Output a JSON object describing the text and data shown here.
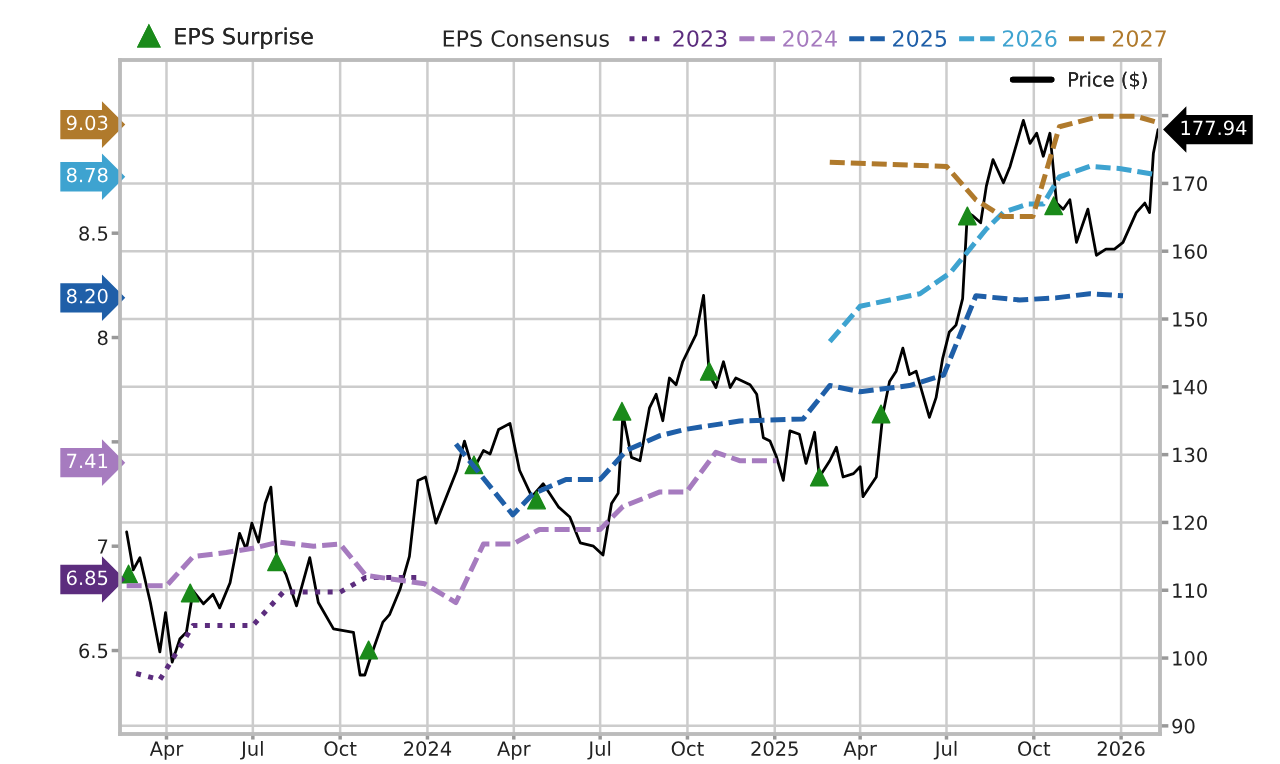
{
  "chart_data": {
    "type": "line",
    "legend_title": "EPS Consensus",
    "xlim": [
      "2023-02-11",
      "2026-02-11"
    ],
    "xticks": [
      {
        "value": "2023-04-01",
        "label": "Apr"
      },
      {
        "value": "2023-07-01",
        "label": "Jul"
      },
      {
        "value": "2023-10-01",
        "label": "Oct"
      },
      {
        "value": "2024-01-01",
        "label": "2024"
      },
      {
        "value": "2024-04-01",
        "label": "Apr"
      },
      {
        "value": "2024-07-01",
        "label": "Jul"
      },
      {
        "value": "2024-10-01",
        "label": "Oct"
      },
      {
        "value": "2025-01-01",
        "label": "2025"
      },
      {
        "value": "2025-04-01",
        "label": "Apr"
      },
      {
        "value": "2025-07-01",
        "label": "Jul"
      },
      {
        "value": "2025-10-01",
        "label": "Oct"
      },
      {
        "value": "2026-01-01",
        "label": "2026"
      }
    ],
    "ylim": [
      6.1,
      9.33
    ],
    "yticks": [
      6.5,
      6.85,
      7,
      7.41,
      {
        "value": 7.5,
        "label": null
      },
      8,
      {
        "value": 8.2,
        "label": "8.20"
      },
      8.5,
      8.78,
      9.03
    ],
    "y2lim": [
      88.8,
      188.2
    ],
    "y2ticks": [
      90,
      100,
      110,
      120,
      130,
      140,
      150,
      160,
      170,
      {
        "value": 180,
        "label": null
      }
    ],
    "grid": true,
    "legend": "top",
    "series": [
      {
        "name": "EPS Surprise",
        "type": "scatter",
        "axis": "y2",
        "color": "#1a8a1a",
        "marker": "triangle",
        "x": [
          "2023-02-20",
          "2023-04-26",
          "2023-07-26",
          "2023-10-31",
          "2024-02-19",
          "2024-04-25",
          "2024-07-24",
          "2024-10-24",
          "2025-02-17",
          "2025-04-23",
          "2025-07-23",
          "2025-10-22"
        ],
        "values": [
          112.4,
          109.6,
          114.2,
          101.2,
          128.5,
          123.3,
          136.4,
          142.3,
          126.7,
          136.0,
          165.2,
          166.7
        ]
      },
      {
        "name": "2023",
        "color": "#5c2d7e",
        "line_style": "dotted",
        "x": [
          "2023-02-28",
          "2023-03-25",
          "2023-04-29",
          "2023-07-01",
          "2023-08-02",
          "2023-10-01",
          "2023-10-28",
          "2023-12-28"
        ],
        "values": [
          6.39,
          6.36,
          6.62,
          6.62,
          6.78,
          6.78,
          6.85,
          6.85
        ]
      },
      {
        "name": "2024",
        "color": "#a67bbf",
        "line_style": "dashed",
        "x": [
          "2023-02-18",
          "2023-04-01",
          "2023-04-29",
          "2023-06-03",
          "2023-07-01",
          "2023-07-29",
          "2023-09-03",
          "2023-10-01",
          "2023-10-28",
          "2023-12-29",
          "2024-01-31",
          "2024-02-29",
          "2024-03-31",
          "2024-04-28",
          "2024-07-01",
          "2024-07-25",
          "2024-09-02",
          "2024-09-30",
          "2024-10-31",
          "2024-11-25",
          "2025-01-03"
        ],
        "values": [
          6.81,
          6.81,
          6.95,
          6.97,
          6.99,
          7.02,
          7.0,
          7.01,
          6.86,
          6.82,
          6.73,
          7.01,
          7.01,
          7.08,
          7.08,
          7.19,
          7.26,
          7.26,
          7.45,
          7.41,
          7.41
        ]
      },
      {
        "name": "2025",
        "color": "#1f5fa8",
        "line_style": "dashed",
        "x": [
          "2024-01-31",
          "2024-03-31",
          "2024-04-21",
          "2024-05-26",
          "2024-07-01",
          "2024-07-29",
          "2024-09-02",
          "2024-09-29",
          "2024-11-25",
          "2025-01-31",
          "2025-02-28",
          "2025-04-01",
          "2025-05-23",
          "2025-06-28",
          "2025-08-01",
          "2025-09-16",
          "2025-10-24",
          "2025-11-29",
          "2026-01-03"
        ],
        "values": [
          7.49,
          7.15,
          7.25,
          7.32,
          7.32,
          7.46,
          7.53,
          7.56,
          7.6,
          7.61,
          7.77,
          7.74,
          7.77,
          7.82,
          8.2,
          8.18,
          8.19,
          8.21,
          8.2
        ]
      },
      {
        "name": "2026",
        "color": "#3ea3d0",
        "line_style": "dashed",
        "x": [
          "2025-02-28",
          "2025-04-01",
          "2025-06-03",
          "2025-07-05",
          "2025-08-12",
          "2025-08-30",
          "2025-09-25",
          "2025-10-11",
          "2025-10-28",
          "2025-11-29",
          "2025-12-30",
          "2026-02-07"
        ],
        "values": [
          7.98,
          8.15,
          8.21,
          8.31,
          8.52,
          8.6,
          8.64,
          8.64,
          8.77,
          8.82,
          8.81,
          8.78
        ]
      },
      {
        "name": "2027",
        "color": "#b07a2c",
        "line_style": "dashed",
        "x": [
          "2025-02-28",
          "2025-07-01",
          "2025-08-01",
          "2025-08-29",
          "2025-09-30",
          "2025-10-28",
          "2025-12-09",
          "2026-01-17",
          "2026-02-09"
        ],
        "values": [
          8.84,
          8.82,
          8.66,
          8.58,
          8.58,
          9.01,
          9.06,
          9.06,
          9.03
        ]
      },
      {
        "name": "Price ($)",
        "axis": "y2",
        "color": "#000000",
        "line_style": "solid",
        "x": [
          "2023-02-18",
          "2023-02-25",
          "2023-03-04",
          "2023-03-15",
          "2023-03-25",
          "2023-03-31",
          "2023-04-07",
          "2023-04-15",
          "2023-04-22",
          "2023-04-29",
          "2023-05-10",
          "2023-05-20",
          "2023-05-27",
          "2023-06-07",
          "2023-06-17",
          "2023-06-24",
          "2023-06-30",
          "2023-07-07",
          "2023-07-14",
          "2023-07-20",
          "2023-07-26",
          "2023-08-05",
          "2023-08-16",
          "2023-08-30",
          "2023-09-08",
          "2023-09-24",
          "2023-10-15",
          "2023-10-22",
          "2023-10-27",
          "2023-11-05",
          "2023-11-15",
          "2023-11-22",
          "2023-12-03",
          "2023-12-13",
          "2023-12-22",
          "2023-12-30",
          "2024-01-10",
          "2024-02-01",
          "2024-02-09",
          "2024-02-18",
          "2024-02-29",
          "2024-03-07",
          "2024-03-16",
          "2024-03-28",
          "2024-04-07",
          "2024-04-20",
          "2024-05-02",
          "2024-05-18",
          "2024-05-30",
          "2024-06-10",
          "2024-06-24",
          "2024-07-04",
          "2024-07-13",
          "2024-07-20",
          "2024-07-25",
          "2024-08-03",
          "2024-08-12",
          "2024-08-22",
          "2024-08-29",
          "2024-09-05",
          "2024-09-12",
          "2024-09-19",
          "2024-09-26",
          "2024-10-10",
          "2024-10-18",
          "2024-10-24",
          "2024-10-31",
          "2024-11-08",
          "2024-11-15",
          "2024-11-21",
          "2024-12-06",
          "2024-12-13",
          "2024-12-20",
          "2024-12-27",
          "2025-01-03",
          "2025-01-10",
          "2025-01-17",
          "2025-01-27",
          "2025-02-03",
          "2025-02-12",
          "2025-02-17",
          "2025-02-28",
          "2025-03-07",
          "2025-03-14",
          "2025-03-25",
          "2025-04-01",
          "2025-04-04",
          "2025-04-18",
          "2025-04-25",
          "2025-05-02",
          "2025-05-09",
          "2025-05-16",
          "2025-05-23",
          "2025-05-30",
          "2025-06-06",
          "2025-06-13",
          "2025-06-20",
          "2025-06-27",
          "2025-07-04",
          "2025-07-11",
          "2025-07-18",
          "2025-07-23",
          "2025-07-29",
          "2025-08-06",
          "2025-08-12",
          "2025-08-19",
          "2025-08-30",
          "2025-09-06",
          "2025-09-20",
          "2025-09-27",
          "2025-10-04",
          "2025-10-11",
          "2025-10-18",
          "2025-10-25",
          "2025-11-01",
          "2025-11-08",
          "2025-11-15",
          "2025-11-27",
          "2025-12-06",
          "2025-12-16",
          "2025-12-25",
          "2026-01-03",
          "2026-01-17",
          "2026-01-26",
          "2026-01-31",
          "2026-02-04",
          "2026-02-09"
        ],
        "values": [
          118.6,
          113.0,
          114.8,
          108.2,
          100.9,
          106.7,
          99.4,
          102.8,
          103.8,
          109.9,
          108.0,
          109.4,
          107.4,
          111.1,
          118.4,
          116.0,
          119.9,
          117.1,
          122.8,
          125.2,
          115.0,
          112.3,
          107.7,
          114.8,
          108.2,
          104.3,
          103.8,
          97.5,
          97.5,
          101.3,
          105.3,
          106.4,
          110.1,
          115.0,
          126.2,
          126.7,
          119.9,
          127.7,
          132.0,
          127.7,
          130.6,
          130.1,
          133.7,
          134.6,
          127.7,
          123.8,
          125.7,
          122.3,
          120.8,
          117.0,
          116.5,
          115.2,
          122.8,
          124.3,
          136.0,
          129.6,
          129.1,
          136.9,
          138.9,
          135.0,
          141.3,
          140.3,
          143.7,
          147.7,
          153.5,
          141.8,
          139.9,
          143.7,
          139.9,
          141.3,
          140.3,
          138.9,
          132.5,
          132.0,
          129.6,
          126.2,
          133.5,
          133.0,
          128.7,
          133.3,
          126.7,
          129.1,
          131.1,
          126.7,
          127.2,
          128.2,
          123.8,
          126.7,
          136.0,
          140.8,
          142.3,
          145.7,
          141.8,
          142.3,
          138.9,
          135.5,
          138.4,
          144.2,
          148.1,
          149.1,
          153.0,
          165.7,
          165.2,
          164.2,
          169.6,
          173.5,
          170.1,
          172.5,
          179.3,
          175.9,
          177.4,
          174.0,
          177.4,
          167.1,
          166.2,
          167.6,
          161.3,
          166.2,
          159.4,
          160.3,
          160.3,
          161.3,
          165.7,
          167.1,
          165.7,
          174.4,
          177.94
        ],
        "value_labels": [
          null,
          null,
          null,
          null,
          null,
          null,
          null,
          null,
          null,
          null,
          null,
          null,
          null,
          null,
          null,
          null,
          null,
          null,
          null,
          null,
          null,
          null,
          null,
          null,
          null,
          null,
          null,
          null,
          null,
          null,
          null,
          null,
          null,
          null,
          null,
          null,
          null,
          null,
          null,
          null,
          null,
          null,
          null,
          null,
          null,
          null,
          null,
          null,
          null,
          null,
          null,
          null,
          null,
          null,
          null,
          null,
          null,
          null,
          null,
          null,
          null,
          null,
          null,
          null,
          null,
          null,
          null,
          null,
          null,
          null,
          null,
          null,
          null,
          null,
          null,
          null,
          null,
          null,
          null,
          null,
          null,
          null,
          null,
          null,
          null,
          null,
          null,
          null,
          null,
          null,
          null,
          null,
          null,
          null,
          null,
          null,
          null,
          null,
          null,
          null,
          null,
          null,
          null,
          null,
          null,
          null,
          null,
          null,
          null,
          null,
          null,
          null,
          null,
          null,
          null,
          null,
          null,
          null,
          null,
          null,
          null,
          null,
          null,
          null,
          null,
          null,
          "177.94"
        ]
      }
    ]
  }
}
